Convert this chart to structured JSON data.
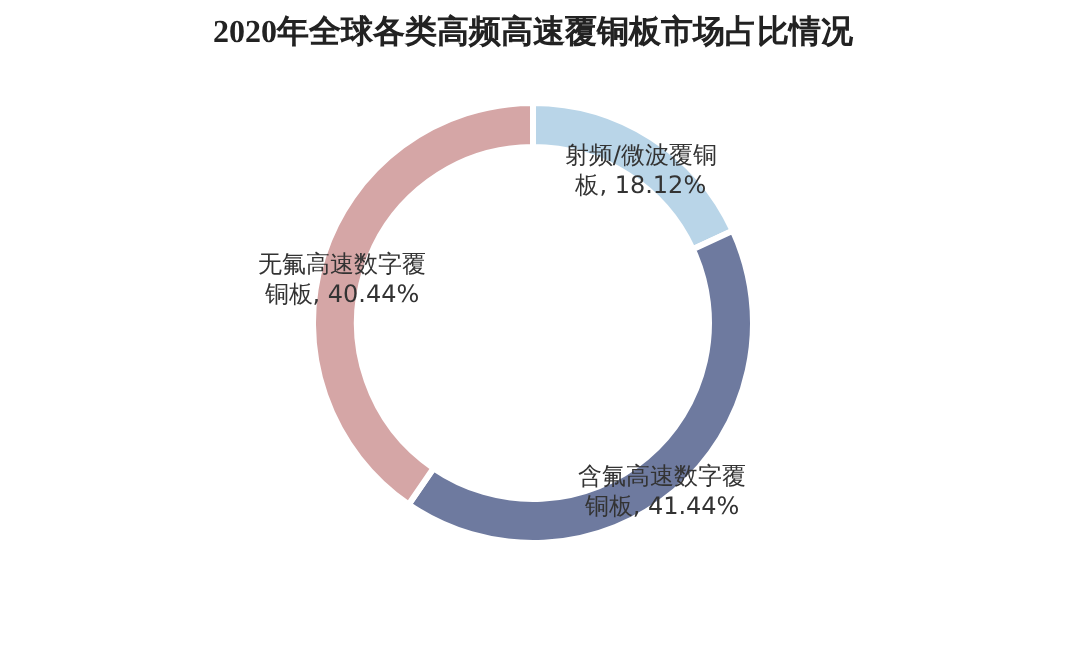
{
  "chart_data": {
    "type": "donut",
    "title": "2020年全球各类高频高速覆铜板市场占比情况",
    "categories": [
      "射频/微波覆铜板",
      "含氟高速数字覆铜板",
      "无氟高速数字覆铜板"
    ],
    "values": [
      18.12,
      41.44,
      40.44
    ],
    "value_labels": [
      "18.12%",
      "41.44%",
      "40.44%"
    ],
    "colors": [
      "#b9d5e8",
      "#6e7a9f",
      "#d5a6a6"
    ],
    "legend": false
  }
}
